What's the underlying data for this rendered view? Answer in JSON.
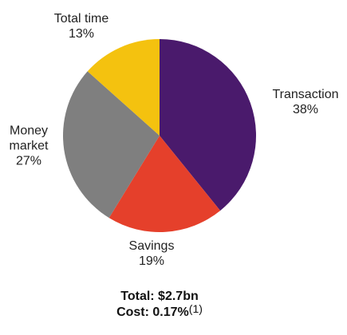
{
  "chart_data": {
    "type": "pie",
    "categories": [
      "Transaction",
      "Savings",
      "Money market",
      "Total time"
    ],
    "values": [
      38,
      19,
      27,
      13
    ],
    "value_labels": [
      "38%",
      "19%",
      "27%",
      "13%"
    ],
    "colors": [
      "#4a1a6c",
      "#e5402b",
      "#7f7f7f",
      "#f4c20f"
    ],
    "annotations": {
      "total": "Total: $2.7bn",
      "cost": "Cost: 0.17%",
      "note": "(1)"
    }
  }
}
